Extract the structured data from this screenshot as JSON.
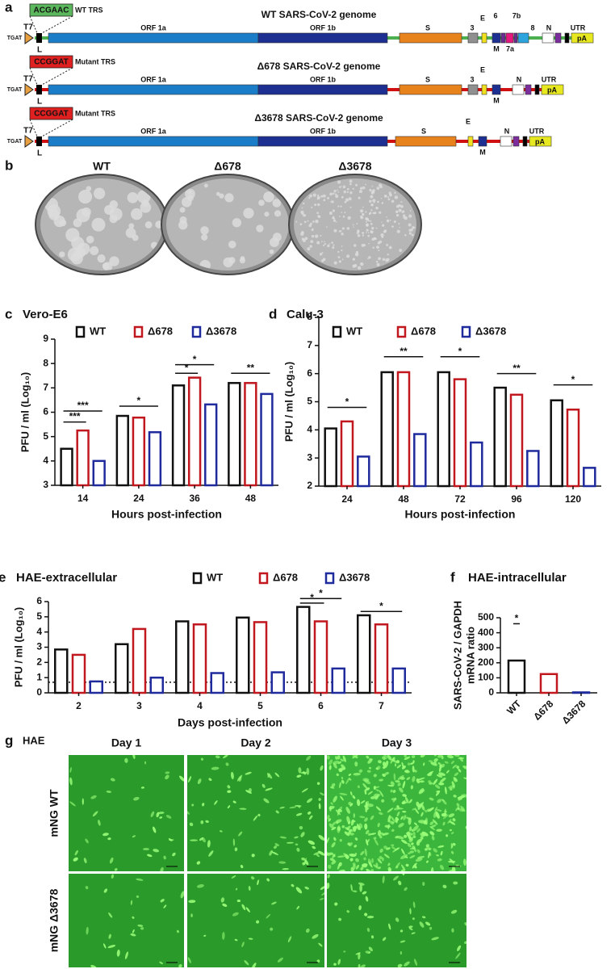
{
  "panel_a": {
    "label": "a",
    "genomes": [
      {
        "trs": "ACGAAC",
        "trs_label": "WT TRS",
        "promoter": "T7",
        "prefix": "TGAT",
        "leader": "L",
        "title": "WT  SARS-CoV-2 genome",
        "genes": [
          "ORF 1a",
          "ORF 1b",
          "S",
          "3",
          "E",
          "6",
          "7b",
          "8",
          "M",
          "7a",
          "N",
          "UTR",
          "pA"
        ]
      },
      {
        "trs": "CCGGAT",
        "trs_label": "Mutant TRS",
        "promoter": "T7",
        "prefix": "TGAT",
        "leader": "L",
        "title": "Δ678 SARS-CoV-2 genome",
        "genes": [
          "ORF 1a",
          "ORF 1b",
          "S",
          "3",
          "E",
          "M",
          "N",
          "UTR",
          "pA"
        ]
      },
      {
        "trs": "CCGGAT",
        "trs_label": "Mutant TRS",
        "promoter": "T7",
        "prefix": "TGAT",
        "leader": "L",
        "title": "Δ3678 SARS-CoV-2 genome",
        "genes": [
          "ORF 1a",
          "ORF 1b",
          "S",
          "E",
          "M",
          "N",
          "UTR",
          "pA"
        ]
      }
    ]
  },
  "panel_b": {
    "label": "b",
    "plates": [
      "WT",
      "Δ678",
      "Δ3678"
    ]
  },
  "chart_data": [
    {
      "type": "bar",
      "panel": "c",
      "title": "Vero-E6",
      "xlabel": "Hours post-infection",
      "ylabel": "PFU / ml (Log₁₀)",
      "categories": [
        "14",
        "24",
        "36",
        "48"
      ],
      "series": [
        {
          "name": "WT",
          "color": "#111111",
          "values": [
            4.5,
            5.85,
            7.1,
            7.2
          ]
        },
        {
          "name": "Δ678",
          "color": "#c0181e",
          "values": [
            5.25,
            5.78,
            7.42,
            7.2
          ]
        },
        {
          "name": "Δ3678",
          "color": "#1f2a9c",
          "values": [
            4.0,
            5.18,
            6.32,
            6.75
          ]
        }
      ],
      "ylim": [
        3,
        9
      ],
      "yticks": [
        3,
        4,
        5,
        6,
        7,
        8,
        9
      ],
      "annotations": [
        "***",
        "***",
        "*",
        "*",
        "*",
        "**"
      ]
    },
    {
      "type": "bar",
      "panel": "d",
      "title": "Calu-3",
      "xlabel": "Hours post-infection",
      "ylabel": "PFU / ml (Log₁₀)",
      "categories": [
        "24",
        "48",
        "72",
        "96",
        "120"
      ],
      "series": [
        {
          "name": "WT",
          "color": "#111111",
          "values": [
            4.05,
            6.05,
            6.05,
            5.5,
            5.05
          ]
        },
        {
          "name": "Δ678",
          "color": "#c0181e",
          "values": [
            4.3,
            6.05,
            5.8,
            5.25,
            4.72
          ]
        },
        {
          "name": "Δ3678",
          "color": "#1f2a9c",
          "values": [
            3.05,
            3.85,
            3.55,
            3.25,
            2.65
          ]
        }
      ],
      "ylim": [
        2,
        8
      ],
      "yticks": [
        2,
        3,
        4,
        5,
        6,
        7,
        8
      ],
      "annotations": [
        "*",
        "**",
        "*",
        "**",
        "*"
      ]
    },
    {
      "type": "bar",
      "panel": "e",
      "title": "HAE-extracellular",
      "xlabel": "Days post-infection",
      "ylabel": "PFU / ml (Log₁₀)",
      "categories": [
        "2",
        "3",
        "4",
        "5",
        "6",
        "7"
      ],
      "series": [
        {
          "name": "WT",
          "color": "#111111",
          "values": [
            2.85,
            3.2,
            4.7,
            4.95,
            5.65,
            5.1
          ]
        },
        {
          "name": "Δ678",
          "color": "#c0181e",
          "values": [
            2.5,
            4.2,
            4.5,
            4.65,
            4.7,
            4.5
          ]
        },
        {
          "name": "Δ3678",
          "color": "#1f2a9c",
          "values": [
            0.75,
            1.0,
            1.3,
            1.35,
            1.6,
            1.6
          ]
        }
      ],
      "ylim": [
        0,
        6
      ],
      "yticks": [
        0,
        1,
        2,
        3,
        4,
        5,
        6
      ],
      "hline": 0.7,
      "annotations": [
        "*",
        "*",
        "*"
      ]
    },
    {
      "type": "bar",
      "panel": "f",
      "title": "HAE-intracellular",
      "ylabel": [
        "SARS-CoV-2 / GAPDH",
        "mRNA ratio"
      ],
      "categories": [
        "WT",
        "Δ678",
        "Δ3678"
      ],
      "values": [
        215,
        125,
        3
      ],
      "colors": [
        "#111111",
        "#c0181e",
        "#1f2a9c"
      ],
      "ylim": [
        0,
        500
      ],
      "yticks": [
        0,
        100,
        200,
        300,
        400,
        500
      ],
      "annotations": [
        "*"
      ]
    }
  ],
  "panel_g": {
    "label": "g",
    "tissue": "HAE",
    "days": [
      "Day 1",
      "Day 2",
      "Day 3"
    ],
    "rows": [
      "mNG WT",
      "mNG Δ3678"
    ]
  }
}
